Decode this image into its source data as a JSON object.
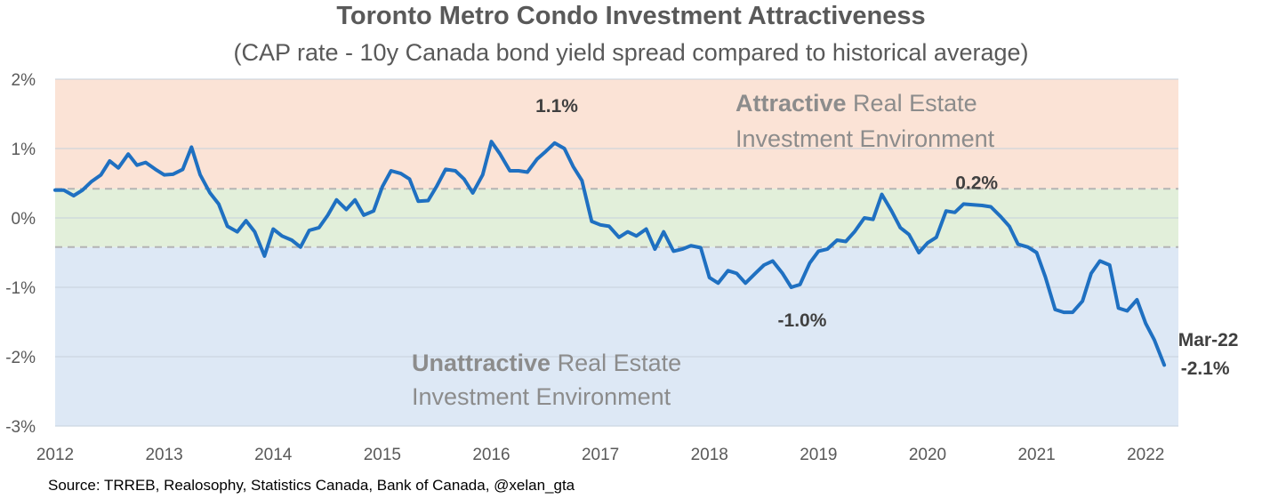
{
  "chart_data": {
    "type": "line",
    "title": "Toronto Metro Condo Investment Attractiveness",
    "subtitle": "(CAP rate - 10y Canada bond yield spread compared to historical average)",
    "source": "Source: TRREB, Realosophy, Statistics Canada, Bank of Canada, @xelan_gta",
    "ylim": [
      -3,
      2
    ],
    "xlim": [
      2012,
      2022.3
    ],
    "yticks": [
      {
        "value": 2,
        "label": "2%"
      },
      {
        "value": 1,
        "label": "1%"
      },
      {
        "value": 0,
        "label": "0%"
      },
      {
        "value": -1,
        "label": "-1%"
      },
      {
        "value": -2,
        "label": "-2%"
      },
      {
        "value": -3,
        "label": "-3%"
      }
    ],
    "xticks": [
      {
        "value": 2012,
        "label": "2012"
      },
      {
        "value": 2013,
        "label": "2013"
      },
      {
        "value": 2014,
        "label": "2014"
      },
      {
        "value": 2015,
        "label": "2015"
      },
      {
        "value": 2016,
        "label": "2016"
      },
      {
        "value": 2017,
        "label": "2017"
      },
      {
        "value": 2018,
        "label": "2018"
      },
      {
        "value": 2019,
        "label": "2019"
      },
      {
        "value": 2020,
        "label": "2020"
      },
      {
        "value": 2021,
        "label": "2021"
      },
      {
        "value": 2022,
        "label": "2022"
      }
    ],
    "bands": [
      {
        "from": 0.42,
        "to": 2,
        "color": "#fbe3d6"
      },
      {
        "from": -0.42,
        "to": 0.42,
        "color": "#e2efda"
      },
      {
        "from": -3,
        "to": -0.42,
        "color": "#dde8f5"
      }
    ],
    "threshold_lines": [
      0.42,
      -0.42
    ],
    "zone_labels": {
      "attractive": {
        "strong": "Attractive",
        "line1_rest": " Real Estate",
        "line2": "Investment Environment"
      },
      "unattractive": {
        "strong": "Unattractive",
        "line1_rest": " Real Estate",
        "line2": "Investment Environment"
      }
    },
    "annotations": [
      {
        "label": "1.1%",
        "x": 2016.6,
        "y": 1.1
      },
      {
        "label": "0.2%",
        "x": 2020.45,
        "y": 0.2
      },
      {
        "label": "-1.0%",
        "x": 2018.85,
        "y": -1.0
      },
      {
        "label": "Mar-22",
        "x": 2022.2,
        "y": -2.1
      },
      {
        "label": "-2.1%",
        "x": 2022.2,
        "y": -2.1
      }
    ],
    "series": [
      {
        "color": "#1f70c1",
        "x": [
          2012.0,
          2012.08,
          2012.17,
          2012.25,
          2012.33,
          2012.42,
          2012.5,
          2012.58,
          2012.67,
          2012.75,
          2012.83,
          2012.92,
          2013.0,
          2013.08,
          2013.17,
          2013.25,
          2013.33,
          2013.42,
          2013.5,
          2013.58,
          2013.67,
          2013.75,
          2013.83,
          2013.92,
          2014.0,
          2014.08,
          2014.17,
          2014.25,
          2014.33,
          2014.42,
          2014.5,
          2014.58,
          2014.67,
          2014.75,
          2014.83,
          2014.92,
          2015.0,
          2015.08,
          2015.17,
          2015.25,
          2015.33,
          2015.42,
          2015.5,
          2015.58,
          2015.67,
          2015.75,
          2015.83,
          2015.92,
          2016.0,
          2016.08,
          2016.17,
          2016.25,
          2016.33,
          2016.42,
          2016.5,
          2016.58,
          2016.67,
          2016.75,
          2016.83,
          2016.92,
          2017.0,
          2017.08,
          2017.17,
          2017.25,
          2017.33,
          2017.42,
          2017.5,
          2017.58,
          2017.67,
          2017.75,
          2017.83,
          2017.92,
          2018.0,
          2018.08,
          2018.17,
          2018.25,
          2018.33,
          2018.42,
          2018.5,
          2018.58,
          2018.67,
          2018.75,
          2018.83,
          2018.92,
          2019.0,
          2019.08,
          2019.17,
          2019.25,
          2019.33,
          2019.42,
          2019.5,
          2019.58,
          2019.67,
          2019.75,
          2019.83,
          2019.92,
          2020.0,
          2020.08,
          2020.17,
          2020.25,
          2020.33,
          2020.42,
          2020.5,
          2020.58,
          2020.67,
          2020.75,
          2020.83,
          2020.92,
          2021.0,
          2021.08,
          2021.17,
          2021.25,
          2021.33,
          2021.42,
          2021.5,
          2021.58,
          2021.67,
          2021.75,
          2021.83,
          2021.92,
          2022.0,
          2022.08,
          2022.17
        ],
        "values": [
          0.4,
          0.4,
          0.32,
          0.4,
          0.52,
          0.62,
          0.82,
          0.72,
          0.92,
          0.76,
          0.8,
          0.7,
          0.62,
          0.63,
          0.7,
          1.02,
          0.62,
          0.36,
          0.2,
          -0.12,
          -0.2,
          -0.04,
          -0.2,
          -0.55,
          -0.16,
          -0.26,
          -0.32,
          -0.42,
          -0.18,
          -0.14,
          0.04,
          0.26,
          0.12,
          0.26,
          0.04,
          0.1,
          0.45,
          0.68,
          0.64,
          0.56,
          0.24,
          0.25,
          0.46,
          0.7,
          0.68,
          0.56,
          0.36,
          0.62,
          1.1,
          0.92,
          0.68,
          0.68,
          0.66,
          0.85,
          0.96,
          1.08,
          1.0,
          0.74,
          0.54,
          -0.05,
          -0.1,
          -0.12,
          -0.28,
          -0.2,
          -0.26,
          -0.16,
          -0.45,
          -0.2,
          -0.48,
          -0.45,
          -0.4,
          -0.43,
          -0.86,
          -0.94,
          -0.76,
          -0.8,
          -0.94,
          -0.8,
          -0.68,
          -0.62,
          -0.8,
          -1.0,
          -0.96,
          -0.65,
          -0.48,
          -0.45,
          -0.32,
          -0.34,
          -0.2,
          0.0,
          -0.02,
          0.34,
          0.1,
          -0.14,
          -0.24,
          -0.5,
          -0.36,
          -0.28,
          0.1,
          0.08,
          0.2,
          0.19,
          0.18,
          0.16,
          0.02,
          -0.12,
          -0.38,
          -0.42,
          -0.5,
          -0.85,
          -1.32,
          -1.36,
          -1.36,
          -1.2,
          -0.8,
          -0.62,
          -0.68,
          -1.3,
          -1.34,
          -1.18,
          -1.52,
          -1.76,
          -2.12
        ]
      }
    ]
  }
}
